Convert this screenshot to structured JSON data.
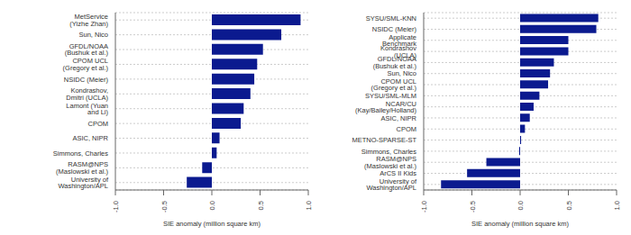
{
  "chart_data": [
    {
      "type": "bar",
      "orientation": "horizontal",
      "color": "#0b1a8f",
      "grid": true,
      "xlabel": "SIE anomaly (million square km)",
      "xlim": [
        -1,
        1
      ],
      "xticks": [
        {
          "value": -1,
          "label": "-1.0"
        },
        {
          "value": -0.5,
          "label": "-0.5"
        },
        {
          "value": 0,
          "label": "0.0"
        },
        {
          "value": 0.5,
          "label": "0.5"
        },
        {
          "value": 1,
          "label": "1.0"
        }
      ],
      "categories": [
        "MetService (Yizhe Zhan)",
        "Sun, Nico",
        "GFDL/NOAA (Bushuk et al.)",
        "CPOM UCL (Gregory et al.)",
        "NSIDC (Meier)",
        "Kondrashov, Dmitri (UCLA)",
        "Lamont (Yuan and Li)",
        "CPOM",
        "ASIC, NIPR",
        "Simmons, Charles",
        "RASM@NPS (Maslowski et al.)",
        "University of Washington/APL"
      ],
      "values": [
        0.92,
        0.72,
        0.53,
        0.47,
        0.44,
        0.4,
        0.33,
        0.3,
        0.08,
        0.05,
        -0.1,
        -0.26
      ]
    },
    {
      "type": "bar",
      "orientation": "horizontal",
      "color": "#0b1a8f",
      "grid": true,
      "xlabel": "SIE anomaly (million square km)",
      "xlim": [
        -1,
        1
      ],
      "xticks": [
        {
          "value": -1,
          "label": "-1.0"
        },
        {
          "value": -0.5,
          "label": "-0.5"
        },
        {
          "value": 0,
          "label": "0.0"
        },
        {
          "value": 0.5,
          "label": "0.5"
        },
        {
          "value": 1,
          "label": "1.0"
        }
      ],
      "categories": [
        "SYSU/SML-KNN",
        "NSIDC (Meier)",
        "Applicate Benchmark",
        "Kondrashov (UCLA)",
        "GFDL/NOAA (Bushuk et al.)",
        "Sun, Nico",
        "CPOM UCL (Gregory et al.)",
        "SYSU/SML-MLM",
        "NCAR/CU (Kay/Bailey/Holland)",
        "ASIC, NIPR",
        "CPOM",
        "METNO-SPARSE-ST",
        "Simmons, Charles",
        "RASM@NPS (Maslowski et al.)",
        "ArCS II Kids",
        "University of Washington/APL"
      ],
      "values": [
        0.81,
        0.79,
        0.5,
        0.5,
        0.35,
        0.31,
        0.29,
        0.2,
        0.14,
        0.1,
        0.05,
        0.01,
        -0.01,
        -0.35,
        -0.55,
        -0.82
      ]
    }
  ]
}
